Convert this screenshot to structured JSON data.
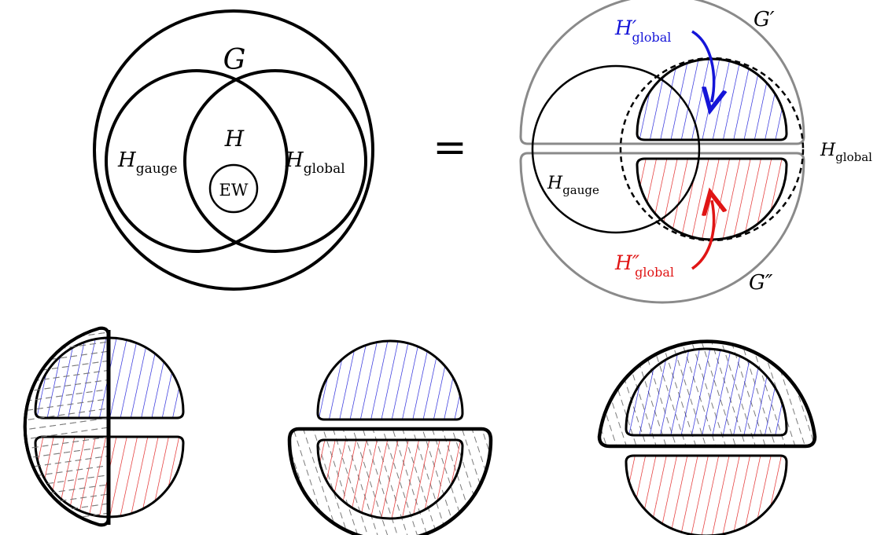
{
  "labels": {
    "G": "G",
    "H": "H",
    "EW": "EW",
    "H_letter": "H",
    "gauge_sub": "gauge",
    "global_sub": "global",
    "equals": "=",
    "G_prime": "G′",
    "G_double_prime": "G″",
    "H_prime_letter": "H′",
    "H_double_prime_letter": "H″"
  },
  "colors": {
    "outline": "#000000",
    "gray_outline": "#8a8a8a",
    "blue": "#1515d8",
    "red": "#e01515",
    "dash_hatch": "#7a7a7a"
  }
}
